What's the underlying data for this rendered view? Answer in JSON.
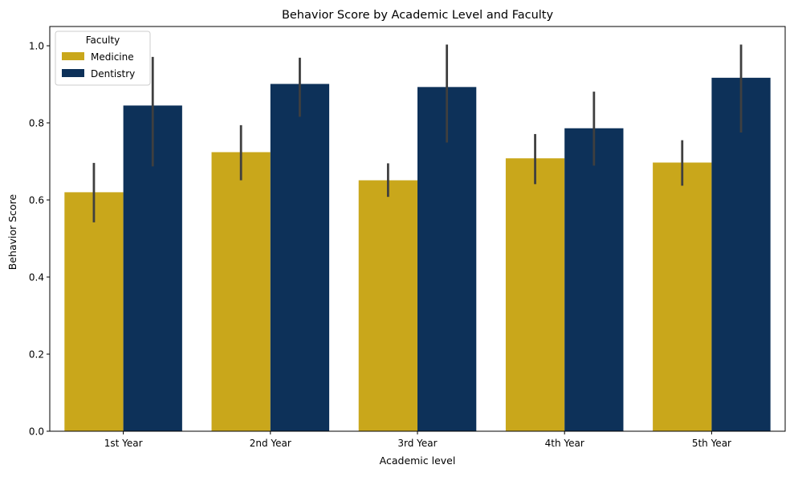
{
  "chart_data": {
    "type": "bar",
    "title": "Behavior Score by Academic Level and Faculty",
    "xlabel": "Academic level",
    "ylabel": "Behavior Score",
    "categories": [
      "1st Year",
      "2nd Year",
      "3rd Year",
      "4th Year",
      "5th Year"
    ],
    "ylim": [
      0,
      1.05
    ],
    "yticks": [
      0.0,
      0.2,
      0.4,
      0.6,
      0.8,
      1.0
    ],
    "ytick_labels": [
      "0.0",
      "0.2",
      "0.4",
      "0.6",
      "0.8",
      "1.0"
    ],
    "grid": false,
    "legend": {
      "title": "Faculty",
      "placement": "top-left"
    },
    "series": [
      {
        "name": "Medicine",
        "color": "#c9a71b",
        "values": [
          0.62,
          0.724,
          0.651,
          0.708,
          0.697
        ],
        "error_low": [
          0.542,
          0.651,
          0.608,
          0.641,
          0.637
        ],
        "error_high": [
          0.696,
          0.794,
          0.695,
          0.771,
          0.755
        ]
      },
      {
        "name": "Dentistry",
        "color": "#0d3159",
        "values": [
          0.845,
          0.901,
          0.893,
          0.786,
          0.917
        ],
        "error_low": [
          0.687,
          0.816,
          0.749,
          0.689,
          0.775
        ],
        "error_high": [
          0.971,
          0.969,
          1.003,
          0.881,
          1.003
        ]
      }
    ],
    "error_bar_color": "#3f3f3f"
  }
}
